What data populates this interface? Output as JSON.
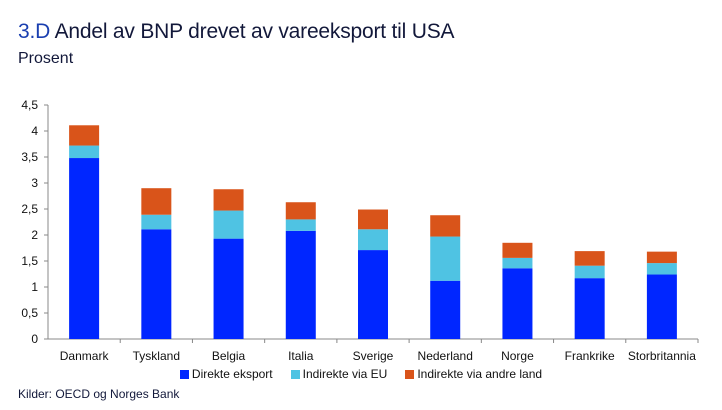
{
  "title_number": "3.D",
  "title": "Andel av BNP drevet av vareeksport til USA",
  "subtitle": "Prosent",
  "source": "Kilder: OECD og Norges Bank",
  "chart_data": {
    "type": "bar",
    "stacked": true,
    "title": "Andel av BNP drevet av vareeksport til USA",
    "ylabel": "Prosent",
    "ylim": [
      0,
      4.5
    ],
    "yticks": [
      "0",
      "0,5",
      "1",
      "1,5",
      "2",
      "2,5",
      "3",
      "3,5",
      "4",
      "4,5"
    ],
    "grid": false,
    "legend_position": "bottom",
    "categories": [
      "Danmark",
      "Tyskland",
      "Belgia",
      "Italia",
      "Sverige",
      "Nederland",
      "Norge",
      "Frankrike",
      "Storbritannia"
    ],
    "series": [
      {
        "name": "Direkte eksport",
        "color": "#0026ff",
        "values": [
          3.48,
          2.11,
          1.93,
          2.08,
          1.71,
          1.12,
          1.36,
          1.17,
          1.24
        ]
      },
      {
        "name": "Indirekte via EU",
        "color": "#4fc3e3",
        "values": [
          0.24,
          0.28,
          0.54,
          0.22,
          0.4,
          0.85,
          0.2,
          0.24,
          0.22
        ]
      },
      {
        "name": "Indirekte via andre land",
        "color": "#d9541a",
        "values": [
          0.39,
          0.51,
          0.41,
          0.33,
          0.38,
          0.41,
          0.29,
          0.28,
          0.22
        ]
      }
    ]
  }
}
